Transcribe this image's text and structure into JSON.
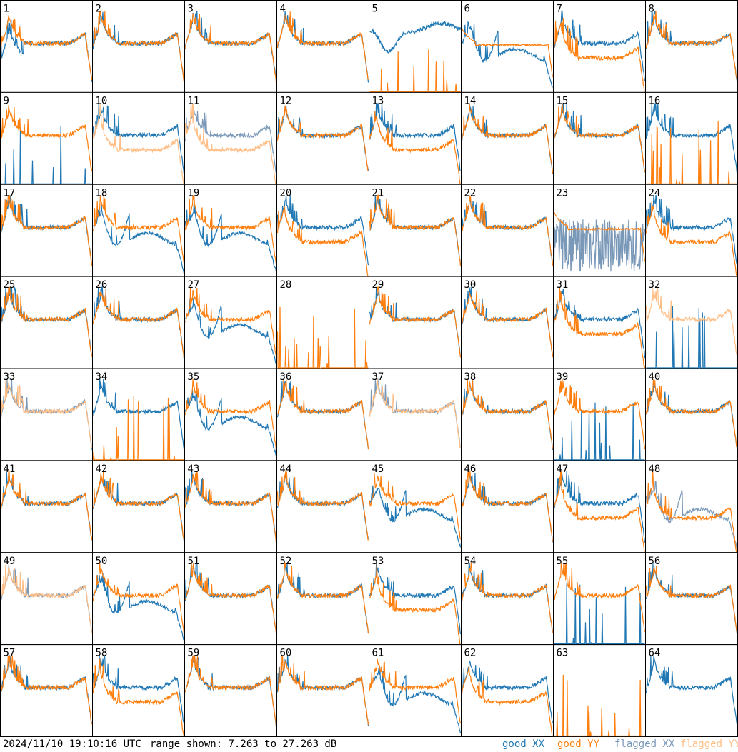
{
  "footer": {
    "timestamp": "2024/11/10 19:10:16 UTC",
    "range_text": "range shown: 7.263 to 27.263 dB",
    "legend": {
      "good_xx": "good XX",
      "good_yy": "good YY",
      "flagged_xx": "flagged XX",
      "flagged_yy": "flagged YY"
    }
  },
  "colors": {
    "good_xx": "#1f77b4",
    "good_yy": "#ff7f0e",
    "flagged_xx": "#7a99b8",
    "flagged_yy": "#ffbe86"
  },
  "chart_data": {
    "type": "line",
    "grid": {
      "rows": 8,
      "cols": 8
    },
    "y_unit": "dB",
    "ylim": [
      7.263,
      27.263
    ],
    "panels": [
      {
        "id": "1",
        "xx": "good",
        "yy": "good",
        "xx_kind": "drop",
        "yy_kind": "std"
      },
      {
        "id": "2",
        "xx": "good",
        "yy": "good",
        "xx_kind": "std",
        "yy_kind": "std"
      },
      {
        "id": "3",
        "xx": "good",
        "yy": "good",
        "xx_kind": "std",
        "yy_kind": "std"
      },
      {
        "id": "4",
        "xx": "good",
        "yy": "good",
        "xx_kind": "std",
        "yy_kind": "std"
      },
      {
        "id": "5",
        "xx": "good",
        "yy": "good",
        "xx_kind": "wave",
        "yy_kind": "spikes"
      },
      {
        "id": "6",
        "xx": "good",
        "yy": "good",
        "xx_kind": "dip",
        "yy_kind": "flat"
      },
      {
        "id": "7",
        "xx": "good",
        "yy": "good",
        "xx_kind": "std",
        "yy_kind": "low"
      },
      {
        "id": "8",
        "xx": "good",
        "yy": "good",
        "xx_kind": "std",
        "yy_kind": "std"
      },
      {
        "id": "9",
        "xx": "good",
        "yy": "good",
        "xx_kind": "spikes",
        "yy_kind": "std"
      },
      {
        "id": "10",
        "xx": "good",
        "yy": "flagged",
        "xx_kind": "std",
        "yy_kind": "low"
      },
      {
        "id": "11",
        "xx": "flagged",
        "yy": "flagged",
        "xx_kind": "std",
        "yy_kind": "low"
      },
      {
        "id": "12",
        "xx": "good",
        "yy": "good",
        "xx_kind": "std",
        "yy_kind": "std"
      },
      {
        "id": "13",
        "xx": "good",
        "yy": "good",
        "xx_kind": "std",
        "yy_kind": "low"
      },
      {
        "id": "14",
        "xx": "good",
        "yy": "good",
        "xx_kind": "std",
        "yy_kind": "std"
      },
      {
        "id": "15",
        "xx": "good",
        "yy": "good",
        "xx_kind": "std",
        "yy_kind": "std"
      },
      {
        "id": "16",
        "xx": "good",
        "yy": "good",
        "xx_kind": "std",
        "yy_kind": "spikes"
      },
      {
        "id": "17",
        "xx": "good",
        "yy": "good",
        "xx_kind": "std",
        "yy_kind": "std"
      },
      {
        "id": "18",
        "xx": "good",
        "yy": "good",
        "xx_kind": "dip",
        "yy_kind": "std"
      },
      {
        "id": "19",
        "xx": "good",
        "yy": "good",
        "xx_kind": "dip",
        "yy_kind": "std"
      },
      {
        "id": "20",
        "xx": "good",
        "yy": "good",
        "xx_kind": "std",
        "yy_kind": "low"
      },
      {
        "id": "21",
        "xx": "good",
        "yy": "good",
        "xx_kind": "std",
        "yy_kind": "std"
      },
      {
        "id": "22",
        "xx": "good",
        "yy": "good",
        "xx_kind": "std",
        "yy_kind": "std"
      },
      {
        "id": "23",
        "xx": "flagged",
        "yy": "good",
        "xx_kind": "noise",
        "yy_kind": "flat"
      },
      {
        "id": "24",
        "xx": "good",
        "yy": "good",
        "xx_kind": "std",
        "yy_kind": "low"
      },
      {
        "id": "25",
        "xx": "good",
        "yy": "good",
        "xx_kind": "std",
        "yy_kind": "std"
      },
      {
        "id": "26",
        "xx": "good",
        "yy": "good",
        "xx_kind": "std",
        "yy_kind": "std"
      },
      {
        "id": "27",
        "xx": "good",
        "yy": "good",
        "xx_kind": "dip",
        "yy_kind": "std"
      },
      {
        "id": "28",
        "xx": "good",
        "yy": "good",
        "xx_kind": "none",
        "yy_kind": "spikes"
      },
      {
        "id": "29",
        "xx": "good",
        "yy": "good",
        "xx_kind": "std",
        "yy_kind": "std"
      },
      {
        "id": "30",
        "xx": "good",
        "yy": "good",
        "xx_kind": "std",
        "yy_kind": "std"
      },
      {
        "id": "31",
        "xx": "good",
        "yy": "good",
        "xx_kind": "std",
        "yy_kind": "low"
      },
      {
        "id": "32",
        "xx": "good",
        "yy": "flagged",
        "xx_kind": "spikes",
        "yy_kind": "std"
      },
      {
        "id": "33",
        "xx": "flagged",
        "yy": "flagged",
        "xx_kind": "std",
        "yy_kind": "std"
      },
      {
        "id": "34",
        "xx": "good",
        "yy": "good",
        "xx_kind": "std",
        "yy_kind": "spikes"
      },
      {
        "id": "35",
        "xx": "good",
        "yy": "good",
        "xx_kind": "dip",
        "yy_kind": "std"
      },
      {
        "id": "36",
        "xx": "good",
        "yy": "good",
        "xx_kind": "std",
        "yy_kind": "std"
      },
      {
        "id": "37",
        "xx": "flagged",
        "yy": "flagged",
        "xx_kind": "std",
        "yy_kind": "std"
      },
      {
        "id": "38",
        "xx": "good",
        "yy": "good",
        "xx_kind": "std",
        "yy_kind": "std"
      },
      {
        "id": "39",
        "xx": "good",
        "yy": "good",
        "xx_kind": "spikes",
        "yy_kind": "std"
      },
      {
        "id": "40",
        "xx": "good",
        "yy": "good",
        "xx_kind": "std",
        "yy_kind": "std"
      },
      {
        "id": "41",
        "xx": "good",
        "yy": "good",
        "xx_kind": "std",
        "yy_kind": "std"
      },
      {
        "id": "42",
        "xx": "good",
        "yy": "good",
        "xx_kind": "std",
        "yy_kind": "std"
      },
      {
        "id": "43",
        "xx": "good",
        "yy": "good",
        "xx_kind": "std",
        "yy_kind": "std"
      },
      {
        "id": "44",
        "xx": "good",
        "yy": "good",
        "xx_kind": "std",
        "yy_kind": "std"
      },
      {
        "id": "45",
        "xx": "good",
        "yy": "good",
        "xx_kind": "dip",
        "yy_kind": "std"
      },
      {
        "id": "46",
        "xx": "good",
        "yy": "good",
        "xx_kind": "std",
        "yy_kind": "std"
      },
      {
        "id": "47",
        "xx": "good",
        "yy": "good",
        "xx_kind": "std",
        "yy_kind": "low"
      },
      {
        "id": "48",
        "xx": "flagged",
        "yy": "good",
        "xx_kind": "dip",
        "yy_kind": "low"
      },
      {
        "id": "49",
        "xx": "flagged",
        "yy": "flagged",
        "xx_kind": "std",
        "yy_kind": "std"
      },
      {
        "id": "50",
        "xx": "good",
        "yy": "good",
        "xx_kind": "dip",
        "yy_kind": "std"
      },
      {
        "id": "51",
        "xx": "good",
        "yy": "good",
        "xx_kind": "std",
        "yy_kind": "std"
      },
      {
        "id": "52",
        "xx": "good",
        "yy": "good",
        "xx_kind": "std",
        "yy_kind": "std"
      },
      {
        "id": "53",
        "xx": "good",
        "yy": "good",
        "xx_kind": "std",
        "yy_kind": "low"
      },
      {
        "id": "54",
        "xx": "good",
        "yy": "good",
        "xx_kind": "std",
        "yy_kind": "std"
      },
      {
        "id": "55",
        "xx": "good",
        "yy": "good",
        "xx_kind": "spikes",
        "yy_kind": "std"
      },
      {
        "id": "56",
        "xx": "good",
        "yy": "good",
        "xx_kind": "std",
        "yy_kind": "std"
      },
      {
        "id": "57",
        "xx": "good",
        "yy": "good",
        "xx_kind": "std",
        "yy_kind": "std"
      },
      {
        "id": "58",
        "xx": "good",
        "yy": "good",
        "xx_kind": "std",
        "yy_kind": "low"
      },
      {
        "id": "59",
        "xx": "good",
        "yy": "good",
        "xx_kind": "std",
        "yy_kind": "std"
      },
      {
        "id": "60",
        "xx": "good",
        "yy": "good",
        "xx_kind": "std",
        "yy_kind": "std"
      },
      {
        "id": "61",
        "xx": "good",
        "yy": "good",
        "xx_kind": "dip",
        "yy_kind": "std"
      },
      {
        "id": "62",
        "xx": "good",
        "yy": "good",
        "xx_kind": "std",
        "yy_kind": "low"
      },
      {
        "id": "63",
        "xx": "good",
        "yy": "good",
        "xx_kind": "none",
        "yy_kind": "spikes"
      },
      {
        "id": "64",
        "xx": "good",
        "yy": "good",
        "xx_kind": "std",
        "yy_kind": "none"
      }
    ]
  }
}
